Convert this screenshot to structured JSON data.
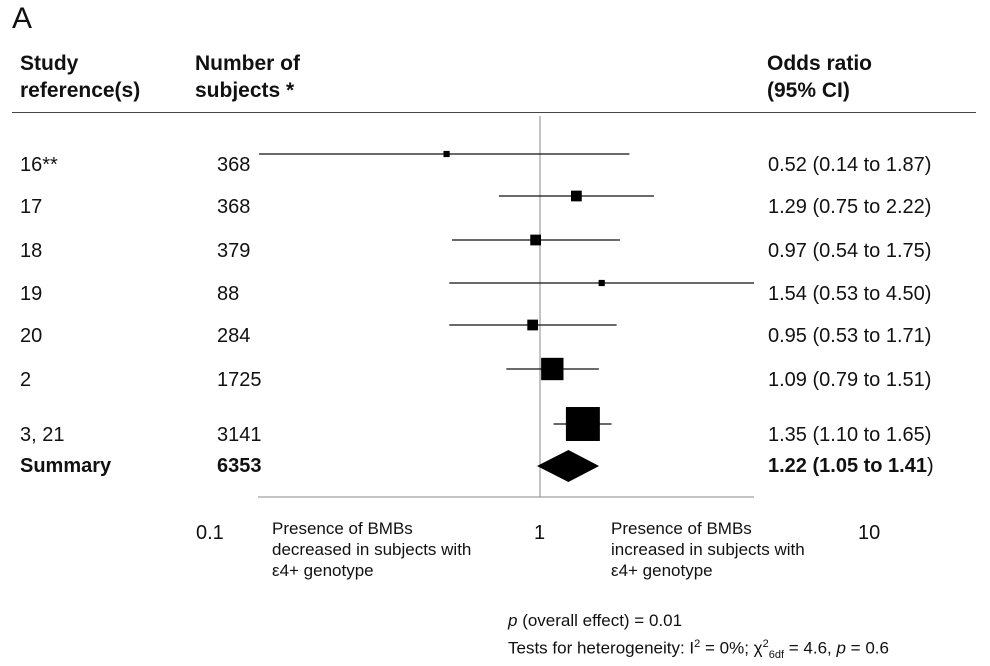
{
  "panel_label": "A",
  "headers": {
    "study": [
      "Study",
      "reference(s)"
    ],
    "subjects": [
      "Number of",
      "subjects *"
    ],
    "or": [
      "Odds ratio",
      "(95% CI)"
    ]
  },
  "chart_data": {
    "type": "forest",
    "x_scale": "log",
    "xlim": [
      0.1,
      10
    ],
    "reference_line": 1,
    "tick_labels": [
      "0.1",
      "1",
      "10"
    ],
    "tick_values": [
      0.1,
      1,
      10
    ],
    "rows": [
      {
        "study": "16**",
        "n": "368",
        "or": 0.52,
        "lo": 0.14,
        "hi": 1.87,
        "ci_text": "0.52 (0.14 to 1.87)",
        "weight": 1
      },
      {
        "study": "17",
        "n": "368",
        "or": 1.29,
        "lo": 0.75,
        "hi": 2.22,
        "ci_text": "1.29 (0.75 to 2.22)",
        "weight": 3
      },
      {
        "study": "18",
        "n": "379",
        "or": 0.97,
        "lo": 0.54,
        "hi": 1.75,
        "ci_text": "0.97 (0.54 to 1.75)",
        "weight": 3
      },
      {
        "study": "19",
        "n": "88",
        "or": 1.54,
        "lo": 0.53,
        "hi": 4.5,
        "ci_text": "1.54 (0.53 to 4.50)",
        "weight": 1
      },
      {
        "study": "20",
        "n": "284",
        "or": 0.95,
        "lo": 0.53,
        "hi": 1.71,
        "ci_text": "0.95 (0.53 to 1.71)",
        "weight": 3
      },
      {
        "study": "2",
        "n": "1725",
        "or": 1.09,
        "lo": 0.79,
        "hi": 1.51,
        "ci_text": "1.09 (0.79 to 1.51)",
        "weight": 13
      },
      {
        "study": "3, 21",
        "n": "3141",
        "or": 1.35,
        "lo": 1.1,
        "hi": 1.65,
        "ci_text": "1.35 (1.10 to 1.65)",
        "weight": 30
      }
    ],
    "summary": {
      "study": "Summary",
      "n": "6353",
      "or": 1.22,
      "lo": 1.05,
      "hi": 1.41,
      "ci_text": "1.22 (1.05 to 1.41",
      "ci_close": ")"
    }
  },
  "notes": {
    "left": "Presence of BMBs decreased in subjects with ε4+ genotype",
    "right": "Presence of BMBs increased in subjects with ε4+ genotype"
  },
  "stats": {
    "p_symbol": "p",
    "overall": " (overall effect) = 0.01",
    "het_prefix": "Tests for heterogeneity: I",
    "i2_sup": "2",
    "het_mid": " = 0%; χ",
    "chi_sup": "2",
    "chi_sub": "6df",
    "het_mid2": " = 4.6, ",
    "p2_symbol": "p",
    "het_end": " = 0.6"
  }
}
